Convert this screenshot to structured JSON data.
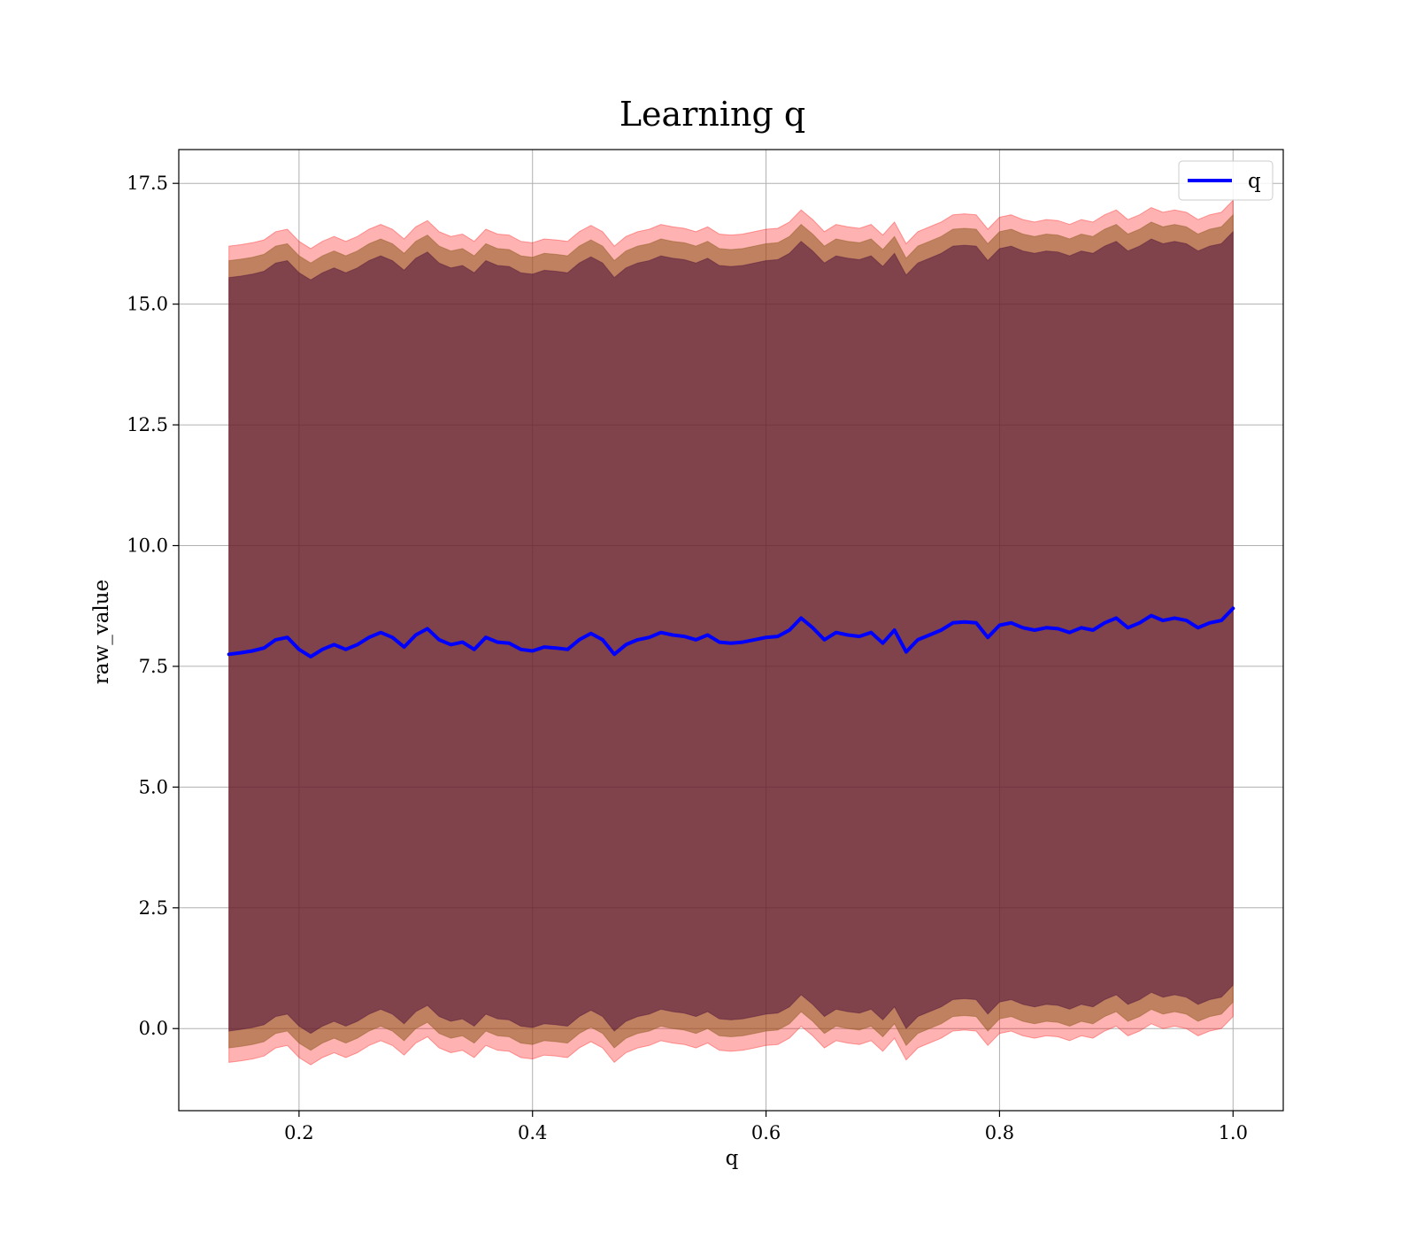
{
  "chart_data": {
    "type": "line",
    "title": "Learning q",
    "xlabel": "q",
    "ylabel": "raw_value",
    "xlim": [
      0.097,
      1.043
    ],
    "ylim": [
      -1.7,
      18.2
    ],
    "xticks": [
      0.2,
      0.4,
      0.6,
      0.8,
      1.0
    ],
    "xtick_labels": [
      "0.2",
      "0.4",
      "0.6",
      "0.8",
      "1.0"
    ],
    "yticks": [
      0.0,
      2.5,
      5.0,
      7.5,
      10.0,
      12.5,
      15.0,
      17.5
    ],
    "ytick_labels": [
      "0.0",
      "2.5",
      "5.0",
      "7.5",
      "10.0",
      "12.5",
      "15.0",
      "17.5"
    ],
    "grid": true,
    "legend": {
      "position": "top-right",
      "entries": [
        "q"
      ]
    },
    "colors": {
      "line": "#0000ff",
      "band_outer": "#ff0000",
      "band_middle": "#8c5a1e",
      "band_inner": "#4a0f3a",
      "grid": "#b0b0b0"
    },
    "band_offsets": {
      "inner": 7.8,
      "middle": 8.15,
      "outer": 8.45
    },
    "series": [
      {
        "name": "q",
        "x": [
          0.14,
          0.15,
          0.16,
          0.17,
          0.18,
          0.19,
          0.2,
          0.21,
          0.22,
          0.23,
          0.24,
          0.25,
          0.26,
          0.27,
          0.28,
          0.29,
          0.3,
          0.31,
          0.32,
          0.33,
          0.34,
          0.35,
          0.36,
          0.37,
          0.38,
          0.39,
          0.4,
          0.41,
          0.42,
          0.43,
          0.44,
          0.45,
          0.46,
          0.47,
          0.48,
          0.49,
          0.5,
          0.51,
          0.52,
          0.53,
          0.54,
          0.55,
          0.56,
          0.57,
          0.58,
          0.59,
          0.6,
          0.61,
          0.62,
          0.63,
          0.64,
          0.65,
          0.66,
          0.67,
          0.68,
          0.69,
          0.7,
          0.71,
          0.72,
          0.73,
          0.74,
          0.75,
          0.76,
          0.77,
          0.78,
          0.79,
          0.8,
          0.81,
          0.82,
          0.83,
          0.84,
          0.85,
          0.86,
          0.87,
          0.88,
          0.89,
          0.9,
          0.91,
          0.92,
          0.93,
          0.94,
          0.95,
          0.96,
          0.97,
          0.98,
          0.99,
          1.0
        ],
        "y": [
          7.75,
          7.78,
          7.82,
          7.88,
          8.05,
          8.1,
          7.85,
          7.7,
          7.85,
          7.95,
          7.85,
          7.95,
          8.1,
          8.2,
          8.1,
          7.9,
          8.15,
          8.28,
          8.05,
          7.95,
          8.0,
          7.85,
          8.1,
          8.0,
          7.98,
          7.85,
          7.82,
          7.9,
          7.88,
          7.85,
          8.05,
          8.18,
          8.05,
          7.75,
          7.95,
          8.05,
          8.1,
          8.2,
          8.15,
          8.12,
          8.05,
          8.15,
          8.0,
          7.98,
          8.0,
          8.05,
          8.1,
          8.12,
          8.25,
          8.5,
          8.3,
          8.05,
          8.2,
          8.15,
          8.12,
          8.2,
          7.98,
          8.25,
          7.8,
          8.05,
          8.15,
          8.25,
          8.4,
          8.42,
          8.4,
          8.1,
          8.35,
          8.4,
          8.3,
          8.25,
          8.3,
          8.28,
          8.2,
          8.3,
          8.25,
          8.4,
          8.5,
          8.3,
          8.4,
          8.55,
          8.45,
          8.5,
          8.45,
          8.3,
          8.4,
          8.45,
          8.7
        ]
      }
    ]
  }
}
